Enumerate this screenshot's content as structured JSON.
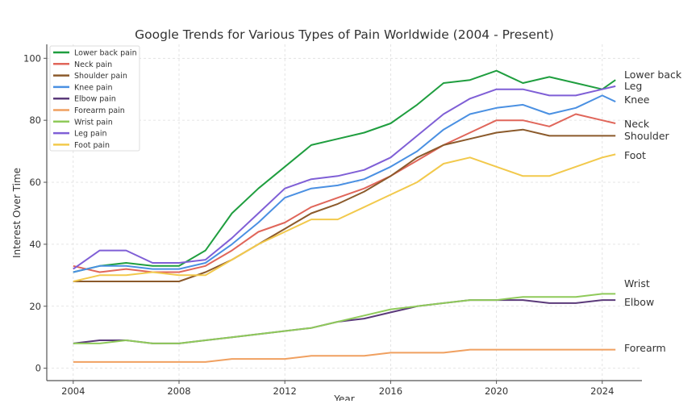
{
  "chart_data": {
    "type": "line",
    "title": "Google Trends for Various Types of Pain Worldwide (2004 - Present)",
    "xlabel": "Year",
    "ylabel": "Interest Over Time",
    "xlim": [
      2003.0,
      2025.5
    ],
    "ylim": [
      -4,
      104.5
    ],
    "xticks": [
      2004,
      2008,
      2012,
      2016,
      2020,
      2024
    ],
    "yticks": [
      0,
      20,
      40,
      60,
      80,
      100
    ],
    "grid": true,
    "legend_position": "top-left",
    "x": [
      2004,
      2005,
      2006,
      2007,
      2008,
      2009,
      2010,
      2011,
      2012,
      2013,
      2014,
      2015,
      2016,
      2017,
      2018,
      2019,
      2020,
      2021,
      2022,
      2023,
      2024,
      2024.5
    ],
    "series": [
      {
        "name": "Lower back pain",
        "color": "#1f9e3f",
        "end_label": "Lower back",
        "values": [
          31,
          33,
          34,
          33,
          33,
          38,
          50,
          58,
          65,
          72,
          74,
          76,
          79,
          85,
          92,
          93,
          96,
          92,
          94,
          92,
          90,
          93
        ]
      },
      {
        "name": "Neck pain",
        "color": "#e0665a",
        "end_label": "Neck",
        "values": [
          33,
          31,
          32,
          31,
          31,
          33,
          38,
          44,
          47,
          52,
          55,
          58,
          62,
          67,
          72,
          76,
          80,
          80,
          78,
          82,
          80,
          79
        ]
      },
      {
        "name": "Shoulder pain",
        "color": "#8b5a2b",
        "end_label": "Shoulder",
        "values": [
          28,
          28,
          28,
          28,
          28,
          31,
          35,
          40,
          45,
          50,
          53,
          57,
          62,
          68,
          72,
          74,
          76,
          77,
          75,
          75,
          75,
          75
        ]
      },
      {
        "name": "Knee pain",
        "color": "#4a90e2",
        "end_label": "Knee",
        "values": [
          31,
          33,
          33,
          32,
          32,
          34,
          40,
          47,
          55,
          58,
          59,
          61,
          65,
          70,
          77,
          82,
          84,
          85,
          82,
          84,
          88,
          86
        ]
      },
      {
        "name": "Elbow pain",
        "color": "#5b3a7a",
        "end_label": "Elbow",
        "values": [
          8,
          9,
          9,
          8,
          8,
          9,
          10,
          11,
          12,
          13,
          15,
          16,
          18,
          20,
          21,
          22,
          22,
          22,
          21,
          21,
          22,
          22
        ]
      },
      {
        "name": "Forearm pain",
        "color": "#f0a060",
        "end_label": "Forearm",
        "values": [
          2,
          2,
          2,
          2,
          2,
          2,
          3,
          3,
          3,
          4,
          4,
          4,
          5,
          5,
          5,
          6,
          6,
          6,
          6,
          6,
          6,
          6
        ]
      },
      {
        "name": "Wrist pain",
        "color": "#8fca5a",
        "end_label": "Wrist",
        "values": [
          8,
          8,
          9,
          8,
          8,
          9,
          10,
          11,
          12,
          13,
          15,
          17,
          19,
          20,
          21,
          22,
          22,
          23,
          23,
          23,
          24,
          24
        ]
      },
      {
        "name": "Leg pain",
        "color": "#7f5fd6",
        "end_label": "Leg",
        "values": [
          32,
          38,
          38,
          34,
          34,
          35,
          42,
          50,
          58,
          61,
          62,
          64,
          68,
          75,
          82,
          87,
          90,
          90,
          88,
          88,
          90,
          91
        ]
      },
      {
        "name": "Foot pain",
        "color": "#f2c94c",
        "end_label": "Foot",
        "values": [
          28,
          30,
          30,
          31,
          30,
          30,
          35,
          40,
          44,
          48,
          48,
          52,
          56,
          60,
          66,
          68,
          65,
          62,
          62,
          65,
          68,
          69
        ]
      }
    ]
  }
}
